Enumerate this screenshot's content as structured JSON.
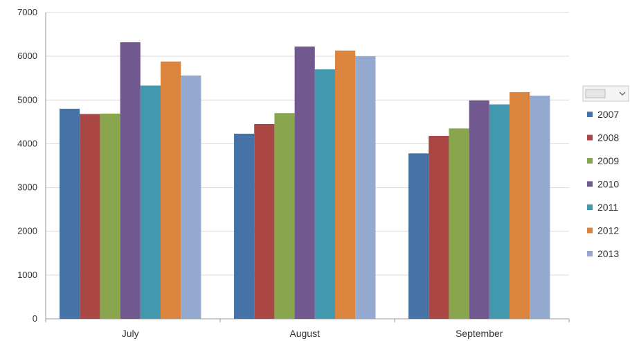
{
  "chart_data": {
    "type": "bar",
    "categories": [
      "July",
      "August",
      "September"
    ],
    "series": [
      {
        "name": "2007",
        "color": "#4572a7",
        "values": [
          4800,
          4230,
          3780
        ]
      },
      {
        "name": "2008",
        "color": "#aa4643",
        "values": [
          4680,
          4450,
          4180
        ]
      },
      {
        "name": "2009",
        "color": "#89a54e",
        "values": [
          4690,
          4700,
          4350
        ]
      },
      {
        "name": "2010",
        "color": "#71588f",
        "values": [
          6320,
          6220,
          4990
        ]
      },
      {
        "name": "2011",
        "color": "#4198af",
        "values": [
          5330,
          5700,
          4900
        ]
      },
      {
        "name": "2012",
        "color": "#db843d",
        "values": [
          5880,
          6130,
          5180
        ]
      },
      {
        "name": "2013",
        "color": "#93a9cf",
        "values": [
          5560,
          6000,
          5100
        ]
      }
    ],
    "yticks": [
      0,
      1000,
      2000,
      3000,
      4000,
      5000,
      6000,
      7000
    ],
    "ylim": [
      0,
      7000
    ],
    "grid": true,
    "legend_position": "right",
    "legend_filter_icon": "dropdown-filter-icon"
  }
}
